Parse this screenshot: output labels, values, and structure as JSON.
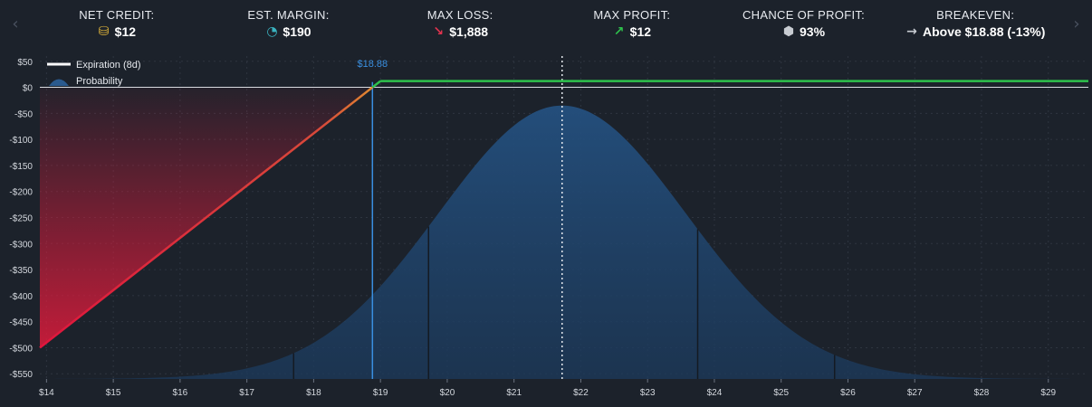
{
  "header": {
    "prev_arrow": "‹",
    "next_arrow": "›",
    "stats": [
      {
        "label": "NET CREDIT:",
        "value": "$12",
        "icon": "coins-icon",
        "color": "#e0b53a"
      },
      {
        "label": "EST. MARGIN:",
        "value": "$190",
        "icon": "pie-chart-icon",
        "color": "#3ab3c0"
      },
      {
        "label": "MAX LOSS:",
        "value": "$1,888",
        "icon": "arrow-down-right-icon",
        "color": "#e0334e"
      },
      {
        "label": "MAX PROFIT:",
        "value": "$12",
        "icon": "arrow-up-right-icon",
        "color": "#2ec24c"
      },
      {
        "label": "CHANCE OF PROFIT:",
        "value": "93%",
        "icon": "dice-icon",
        "color": "#c8ccd2"
      },
      {
        "label": "BREAKEVEN:",
        "value": "Above $18.88 (-13%)",
        "icon": "arrow-right-icon",
        "color": "#c8ccd2"
      }
    ]
  },
  "chart_data": {
    "type": "line",
    "legend": [
      {
        "name": "Expiration (8d)",
        "color": "#ffffff"
      },
      {
        "name": "Probability",
        "color": "#2a5a8e"
      }
    ],
    "legend_position": "top-left",
    "xlim": [
      13.9,
      29.6
    ],
    "ylim": [
      -560,
      60
    ],
    "x_ticks": [
      14,
      15,
      16,
      17,
      18,
      19,
      20,
      21,
      22,
      23,
      24,
      25,
      26,
      27,
      28,
      29
    ],
    "x_tick_labels": [
      "$14",
      "$15",
      "$16",
      "$17",
      "$18",
      "$19",
      "$20",
      "$21",
      "$22",
      "$23",
      "$24",
      "$25",
      "$26",
      "$27",
      "$28",
      "$29"
    ],
    "y_ticks": [
      50,
      0,
      -50,
      -100,
      -150,
      -200,
      -250,
      -300,
      -350,
      -400,
      -450,
      -500,
      -550
    ],
    "y_tick_labels": [
      "$50",
      "$0",
      "-$50",
      "-$100",
      "-$150",
      "-$200",
      "-$250",
      "-$300",
      "-$350",
      "-$400",
      "-$450",
      "-$500",
      "-$550"
    ],
    "grid": true,
    "series": [
      {
        "name": "Expiration (8d)",
        "points": [
          [
            13.9,
            -500
          ],
          [
            18.88,
            0
          ],
          [
            19.0,
            12
          ],
          [
            29.6,
            12
          ]
        ]
      }
    ],
    "probability": {
      "mean": 21.72,
      "sd": 1.85,
      "peak_y": -35
    },
    "breakeven": {
      "x": 18.88,
      "label": "$18.88",
      "color": "#3a8fe0"
    },
    "current_price_x": 21.72,
    "sigma_lines_x": [
      17.7,
      19.72,
      23.75,
      25.8
    ]
  }
}
